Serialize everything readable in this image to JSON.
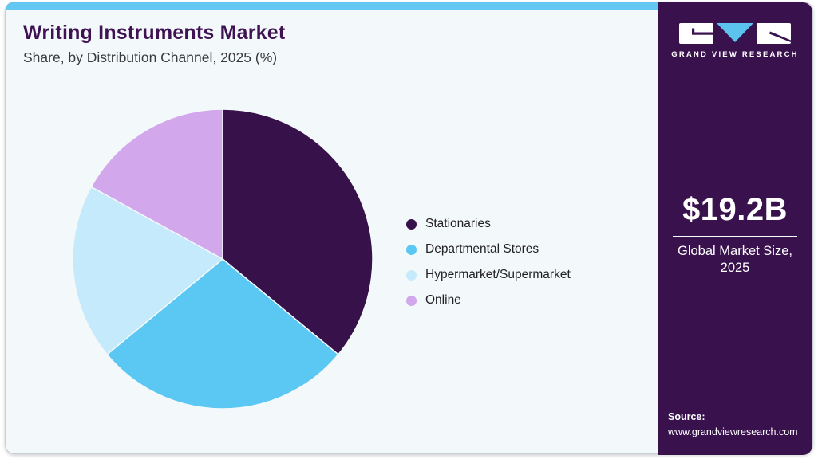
{
  "page": {
    "title": "Writing Instruments Market",
    "subtitle": "Share, by Distribution Channel, 2025 (%)"
  },
  "chart_data": {
    "type": "pie",
    "title": "Writing Instruments Market Share, by Distribution Channel, 2025 (%)",
    "unit": "%",
    "categories": [
      "Stationaries",
      "Departmental Stores",
      "Hypermarket/Supermarket",
      "Online"
    ],
    "values": [
      36,
      28,
      19,
      17
    ],
    "colors": [
      "#371149",
      "#5bc7f3",
      "#c5eafb",
      "#d2a7ec"
    ],
    "legend_position": "right",
    "start_angle_deg": 0,
    "direction": "clockwise",
    "data_labels_shown": false
  },
  "sidebar": {
    "logo_text": "GRAND VIEW RESEARCH",
    "market_size_value": "$19.2B",
    "market_size_label_line1": "Global Market Size,",
    "market_size_label_line2": "2025",
    "source_label": "Source:",
    "source_url": "www.grandviewresearch.com"
  },
  "theme": {
    "top_strip": "#62c7f1",
    "card_background": "#f3f8fb",
    "title_color": "#3e1253",
    "sidebar_background": "#38114d",
    "logo_accent_blue": "#5bc3ee",
    "slice_border": "#f3f8fb"
  }
}
